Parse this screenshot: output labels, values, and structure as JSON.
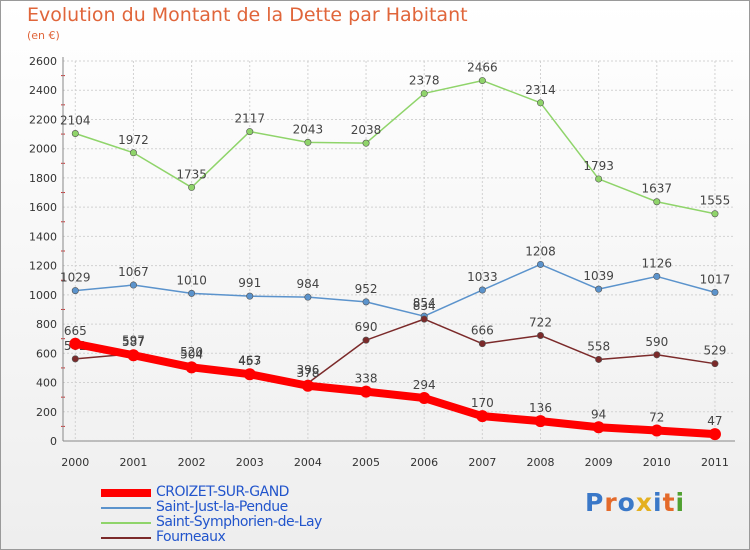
{
  "header": {
    "title": "Evolution du Montant de la Dette par Habitant",
    "subtitle": "(en €)"
  },
  "logo": {
    "text": "Proxiti",
    "colors": [
      "#3a78c8",
      "#e46a2a",
      "#3a78c8",
      "#e4b020",
      "#3a78c8",
      "#e46a2a",
      "#50a030"
    ]
  },
  "chart_data": {
    "type": "line",
    "x": [
      "2000",
      "2001",
      "2002",
      "2003",
      "2004",
      "2005",
      "2006",
      "2007",
      "2008",
      "2009",
      "2010",
      "2011"
    ],
    "ylim": [
      0,
      2600
    ],
    "yticks": [
      0,
      200,
      400,
      600,
      800,
      1000,
      1200,
      1400,
      1600,
      1800,
      2000,
      2200,
      2400,
      2600
    ],
    "grid": true,
    "legend_position": "bottom-left",
    "series": [
      {
        "name": "Saint-Symphorien-de-Lay",
        "color": "#8fd46a",
        "values": [
          2104,
          1972,
          1735,
          2117,
          2043,
          2038,
          2378,
          2466,
          2314,
          1793,
          1637,
          1555
        ]
      },
      {
        "name": "Saint-Just-la-Pendue",
        "color": "#5b93cc",
        "values": [
          1029,
          1067,
          1010,
          991,
          984,
          952,
          854,
          1033,
          1208,
          1039,
          1126,
          1017
        ]
      },
      {
        "name": "Fourneaux",
        "color": "#7b2a2a",
        "values": [
          562,
          597,
          520,
          463,
          396,
          690,
          834,
          666,
          722,
          558,
          590,
          529
        ]
      },
      {
        "name": "CROIZET-SUR-GAND",
        "color": "#ff0000",
        "values": [
          665,
          587,
          504,
          457,
          378,
          338,
          294,
          170,
          136,
          94,
          72,
          47
        ]
      }
    ]
  },
  "legend": {
    "items": [
      {
        "name": "CROIZET-SUR-GAND",
        "color": "#ff0000"
      },
      {
        "name": "Saint-Just-la-Pendue",
        "color": "#5b93cc"
      },
      {
        "name": "Saint-Symphorien-de-Lay",
        "color": "#8fd46a"
      },
      {
        "name": "Fourneaux",
        "color": "#7b2a2a"
      }
    ]
  }
}
